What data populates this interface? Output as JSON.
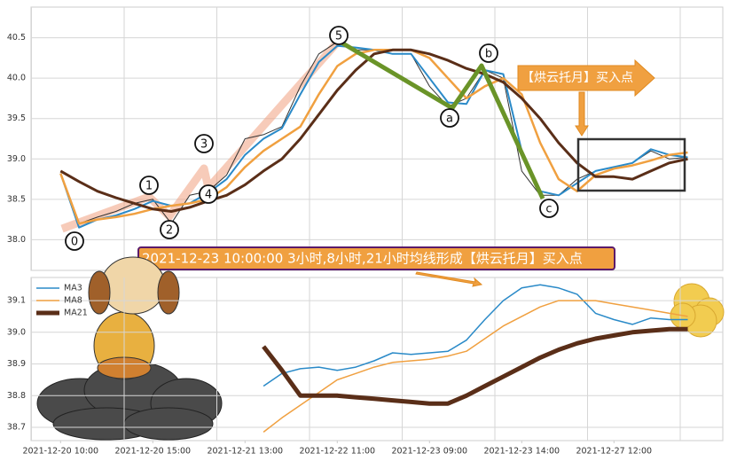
{
  "chart_data": [
    {
      "type": "line",
      "xlim": [
        -1.6,
        35.9
      ],
      "ylim": [
        37.62,
        40.88
      ],
      "yticks": [
        {
          "value": 38,
          "label": "38.0"
        },
        38.5,
        {
          "value": 39,
          "label": "39.0"
        },
        39.5,
        {
          "value": 40,
          "label": "40.0"
        },
        40.5
      ],
      "grid": true,
      "series": [
        {
          "color": "#333333",
          "values": [
            38.82,
            38.2,
            38.28,
            38.35,
            38.45,
            38.5,
            38.2,
            38.55,
            38.6,
            38.8,
            39.25,
            39.3,
            39.4,
            39.9,
            40.3,
            40.45,
            40.35,
            40.35,
            40.3,
            40.3,
            39.9,
            39.65,
            39.75,
            40.1,
            40.0,
            38.85,
            38.55,
            38.55,
            38.75,
            38.85,
            38.9,
            38.95,
            39.1,
            39.0,
            39.02
          ]
        },
        {
          "color": "#2a8ac8",
          "values": [
            38.82,
            38.15,
            38.25,
            38.3,
            38.38,
            38.48,
            38.42,
            38.45,
            38.58,
            38.75,
            39.05,
            39.25,
            39.38,
            39.8,
            40.2,
            40.4,
            40.38,
            40.35,
            40.3,
            40.3,
            40.0,
            39.7,
            39.68,
            40.1,
            40.05,
            39.1,
            38.6,
            38.55,
            38.7,
            38.85,
            38.9,
            38.95,
            39.12,
            39.05,
            39.02
          ]
        },
        {
          "color": "#f0a040",
          "values": [
            38.82,
            38.2,
            38.25,
            38.28,
            38.32,
            38.38,
            38.42,
            38.45,
            38.5,
            38.65,
            38.9,
            39.1,
            39.25,
            39.4,
            39.8,
            40.15,
            40.3,
            40.35,
            40.35,
            40.35,
            40.25,
            40.0,
            39.75,
            39.9,
            40.0,
            39.8,
            39.2,
            38.75,
            38.6,
            38.8,
            38.88,
            38.92,
            38.98,
            39.05,
            39.08
          ]
        },
        {
          "color": "#5a2e18",
          "values": [
            38.85,
            38.72,
            38.6,
            38.52,
            38.45,
            38.38,
            38.35,
            38.4,
            38.48,
            38.55,
            38.68,
            38.85,
            39.0,
            39.25,
            39.55,
            39.85,
            40.1,
            40.3,
            40.35,
            40.35,
            40.3,
            40.22,
            40.12,
            40.05,
            39.95,
            39.75,
            39.5,
            39.2,
            38.95,
            38.78,
            38.78,
            38.75,
            38.85,
            38.95,
            39.0
          ]
        }
      ],
      "wave_labels": [
        "0",
        "1",
        "2",
        "3",
        "4",
        "5",
        "a",
        "b",
        "c"
      ],
      "signal_label": "【烘云托月】买入点",
      "banner": "2021-12-23 10:00:00 3小时,8小时,21小时均线形成【烘云托月】买入点"
    },
    {
      "type": "line",
      "xlim": [
        -1.6,
        35.9
      ],
      "ylim": [
        38.658,
        39.173
      ],
      "yticks": [
        38.7,
        38.8,
        38.9,
        {
          "value": 39,
          "label": "39.0"
        },
        39.1
      ],
      "xticks": [
        {
          "value": 0,
          "label": "2021-12-20 10:00"
        },
        {
          "value": 5,
          "label": "2021-12-20 15:00"
        },
        {
          "value": 10,
          "label": "2021-12-21 13:00"
        },
        {
          "value": 15,
          "label": "2021-12-22 11:00"
        },
        {
          "value": 20,
          "label": "2021-12-23 09:00"
        },
        {
          "value": 25,
          "label": "2021-12-23 14:00"
        },
        {
          "value": 30,
          "label": "2021-12-27 12:00"
        }
      ],
      "grid": true,
      "legend": "upper left",
      "series": [
        {
          "name": "MA3",
          "color": "#2a8ac8",
          "width": 1.5,
          "values": [
            null,
            null,
            null,
            null,
            null,
            null,
            null,
            null,
            null,
            null,
            null,
            38.83,
            38.87,
            38.885,
            38.89,
            38.88,
            38.89,
            38.91,
            38.935,
            38.93,
            38.935,
            38.94,
            38.975,
            39.04,
            39.1,
            39.14,
            39.15,
            39.14,
            39.12,
            39.06,
            39.04,
            39.025,
            39.045,
            39.04,
            39.04
          ]
        },
        {
          "name": "MA8",
          "color": "#f0a040",
          "width": 1.5,
          "values": [
            null,
            null,
            null,
            null,
            null,
            null,
            null,
            null,
            null,
            null,
            null,
            38.685,
            38.73,
            38.77,
            38.81,
            38.85,
            38.87,
            38.89,
            38.905,
            38.91,
            38.915,
            38.925,
            38.94,
            38.98,
            39.02,
            39.05,
            39.08,
            39.1,
            39.1,
            39.1,
            39.09,
            39.08,
            39.07,
            39.06,
            39.05
          ]
        },
        {
          "name": "MA21",
          "color": "#5a2e18",
          "width": 5,
          "values": [
            null,
            null,
            null,
            null,
            null,
            null,
            null,
            null,
            null,
            null,
            null,
            38.955,
            38.88,
            38.8,
            38.8,
            38.8,
            38.795,
            38.79,
            38.785,
            38.78,
            38.775,
            38.775,
            38.8,
            38.83,
            38.86,
            38.89,
            38.92,
            38.945,
            38.965,
            38.98,
            38.99,
            39.0,
            39.005,
            39.01,
            39.01
          ]
        }
      ]
    }
  ]
}
